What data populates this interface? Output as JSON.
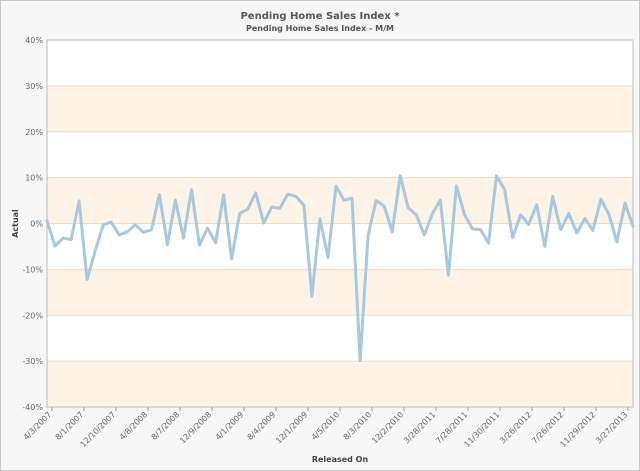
{
  "chart_data": {
    "type": "line",
    "title": "Pending Home Sales Index *",
    "subtitle": "Pending Home Sales Index - M/M",
    "xlabel": "Released On",
    "ylabel": "Actual",
    "ylim": [
      -40,
      40
    ],
    "yticks": [
      -40,
      -30,
      -20,
      -10,
      0,
      10,
      20,
      30,
      40
    ],
    "ytick_labels": [
      "-40%",
      "-30%",
      "-20%",
      "-10%",
      "0%",
      "10%",
      "20%",
      "30%",
      "40%"
    ],
    "xtick_labels": [
      "4/3/2007",
      "8/1/2007",
      "12/10/2007",
      "4/8/2008",
      "8/7/2008",
      "12/9/2008",
      "4/1/2009",
      "8/4/2009",
      "12/1/2009",
      "4/5/2010",
      "8/3/2010",
      "12/2/2010",
      "3/28/2011",
      "7/28/2011",
      "11/30/2011",
      "3/26/2012",
      "7/26/2012",
      "11/29/2012",
      "3/27/2013"
    ],
    "grid": true,
    "colors": {
      "line": "#a8c8e0",
      "band": "#fdf3e6",
      "gridline": "#f2dcc2",
      "plot_bg": "#ffffff"
    },
    "series": [
      {
        "values": [
          0.6,
          -4.9,
          -3.2,
          -3.5,
          4.9,
          -12.2,
          -6.0,
          -0.3,
          0.3,
          -2.5,
          -1.8,
          -0.3,
          -1.9,
          -1.4,
          6.3,
          -4.6,
          5.1,
          -3.2,
          7.4,
          -4.7,
          -1.0,
          -4.2,
          6.3,
          -7.7,
          2.2,
          3.1,
          6.7,
          0.1,
          3.6,
          3.3,
          6.4,
          5.9,
          4.0,
          -15.9,
          1.0,
          -7.4,
          8.1,
          5.1,
          5.5,
          -29.9,
          -2.6,
          5.0,
          3.8,
          -1.8,
          10.4,
          3.4,
          1.9,
          -2.5,
          2.1,
          5.1,
          -11.3,
          8.2,
          2.0,
          -1.2,
          -1.3,
          -4.3,
          10.4,
          7.4,
          -3.1,
          1.9,
          -0.2,
          4.1,
          -5.0,
          5.9,
          -1.4,
          2.2,
          -2.1,
          1.1,
          -1.5,
          5.3,
          2.0,
          -4.0,
          4.5,
          -0.6
        ]
      }
    ]
  }
}
